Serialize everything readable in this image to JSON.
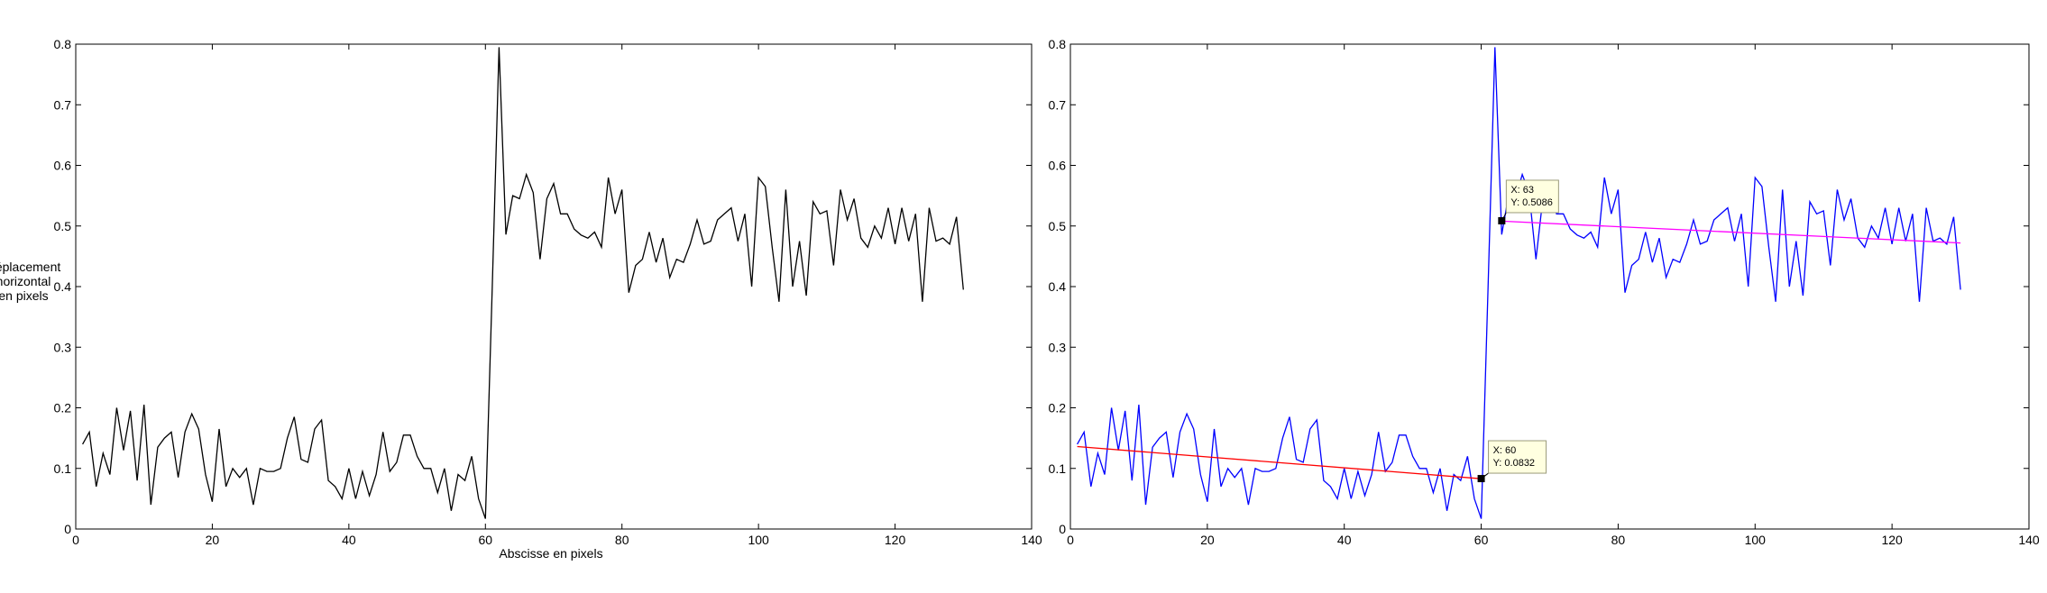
{
  "chart_data": [
    {
      "type": "line",
      "xlabel": "Abscisse en pixels",
      "ylabel_lines": [
        "Déplacement",
        "horizontal",
        "en pixels"
      ],
      "xlim": [
        0,
        140
      ],
      "ylim": [
        0,
        0.8
      ],
      "xticks": [
        0,
        20,
        40,
        60,
        80,
        100,
        120,
        140
      ],
      "yticks": [
        0,
        0.1,
        0.2,
        0.3,
        0.4,
        0.5,
        0.6,
        0.7,
        0.8
      ],
      "xtick_labels": [
        "0",
        "20",
        "40",
        "60",
        "80",
        "100",
        "120",
        "140"
      ],
      "ytick_labels": [
        "0",
        "0.1",
        "0.2",
        "0.3",
        "0.4",
        "0.5",
        "0.6",
        "0.7",
        "0.8"
      ],
      "grid": false,
      "series": [
        {
          "color": "#000000",
          "x": [
            1,
            2,
            3,
            4,
            5,
            6,
            7,
            8,
            9,
            10,
            11,
            12,
            13,
            14,
            15,
            16,
            17,
            18,
            19,
            20,
            21,
            22,
            23,
            24,
            25,
            26,
            27,
            28,
            29,
            30,
            31,
            32,
            33,
            34,
            35,
            36,
            37,
            38,
            39,
            40,
            41,
            42,
            43,
            44,
            45,
            46,
            47,
            48,
            49,
            50,
            51,
            52,
            53,
            54,
            55,
            56,
            57,
            58,
            59,
            60,
            61,
            62,
            63,
            64,
            65,
            66,
            67,
            68,
            69,
            70,
            71,
            72,
            73,
            74,
            75,
            76,
            77,
            78,
            79,
            80,
            81,
            82,
            83,
            84,
            85,
            86,
            87,
            88,
            89,
            90,
            91,
            92,
            93,
            94,
            95,
            96,
            97,
            98,
            99,
            100,
            101,
            102,
            103,
            104,
            105,
            106,
            107,
            108,
            109,
            110,
            111,
            112,
            113,
            114,
            115,
            116,
            117,
            118,
            119,
            120,
            121,
            122,
            123,
            124,
            125,
            126,
            127,
            128,
            129,
            130
          ],
          "y": [
            0.14,
            0.16,
            0.07,
            0.125,
            0.09,
            0.2,
            0.13,
            0.195,
            0.08,
            0.205,
            0.04,
            0.135,
            0.15,
            0.16,
            0.085,
            0.16,
            0.19,
            0.165,
            0.09,
            0.045,
            0.165,
            0.07,
            0.1,
            0.085,
            0.1,
            0.04,
            0.1,
            0.095,
            0.095,
            0.1,
            0.15,
            0.185,
            0.115,
            0.11,
            0.165,
            0.18,
            0.08,
            0.07,
            0.05,
            0.1,
            0.05,
            0.095,
            0.055,
            0.09,
            0.16,
            0.095,
            0.11,
            0.155,
            0.155,
            0.12,
            0.1,
            0.1,
            0.06,
            0.1,
            0.03,
            0.09,
            0.08,
            0.12,
            0.05,
            0.017,
            0.4,
            0.795,
            0.486,
            0.55,
            0.545,
            0.585,
            0.555,
            0.445,
            0.545,
            0.57,
            0.52,
            0.52,
            0.495,
            0.485,
            0.48,
            0.49,
            0.465,
            0.58,
            0.52,
            0.56,
            0.39,
            0.435,
            0.445,
            0.49,
            0.44,
            0.48,
            0.415,
            0.445,
            0.44,
            0.47,
            0.51,
            0.47,
            0.475,
            0.51,
            0.52,
            0.53,
            0.475,
            0.52,
            0.4,
            0.58,
            0.565,
            0.465,
            0.375,
            0.56,
            0.4,
            0.475,
            0.385,
            0.54,
            0.52,
            0.525,
            0.435,
            0.56,
            0.51,
            0.545,
            0.48,
            0.465,
            0.5,
            0.48,
            0.53,
            0.47,
            0.53,
            0.475,
            0.52,
            0.375,
            0.53,
            0.475,
            0.48,
            0.47,
            0.515,
            0.395
          ]
        }
      ]
    },
    {
      "type": "line",
      "xlim": [
        0,
        140
      ],
      "ylim": [
        0,
        0.8
      ],
      "xticks": [
        0,
        20,
        40,
        60,
        80,
        100,
        120,
        140
      ],
      "yticks": [
        0,
        0.1,
        0.2,
        0.3,
        0.4,
        0.5,
        0.6,
        0.7,
        0.8
      ],
      "xtick_labels": [
        "0",
        "20",
        "40",
        "60",
        "80",
        "100",
        "120",
        "140"
      ],
      "ytick_labels": [
        "0",
        "0.1",
        "0.2",
        "0.3",
        "0.4",
        "0.5",
        "0.6",
        "0.7",
        "0.8"
      ],
      "grid": false,
      "series": [
        {
          "color": "#0000ff",
          "x": [
            1,
            2,
            3,
            4,
            5,
            6,
            7,
            8,
            9,
            10,
            11,
            12,
            13,
            14,
            15,
            16,
            17,
            18,
            19,
            20,
            21,
            22,
            23,
            24,
            25,
            26,
            27,
            28,
            29,
            30,
            31,
            32,
            33,
            34,
            35,
            36,
            37,
            38,
            39,
            40,
            41,
            42,
            43,
            44,
            45,
            46,
            47,
            48,
            49,
            50,
            51,
            52,
            53,
            54,
            55,
            56,
            57,
            58,
            59,
            60,
            61,
            62,
            63,
            64,
            65,
            66,
            67,
            68,
            69,
            70,
            71,
            72,
            73,
            74,
            75,
            76,
            77,
            78,
            79,
            80,
            81,
            82,
            83,
            84,
            85,
            86,
            87,
            88,
            89,
            90,
            91,
            92,
            93,
            94,
            95,
            96,
            97,
            98,
            99,
            100,
            101,
            102,
            103,
            104,
            105,
            106,
            107,
            108,
            109,
            110,
            111,
            112,
            113,
            114,
            115,
            116,
            117,
            118,
            119,
            120,
            121,
            122,
            123,
            124,
            125,
            126,
            127,
            128,
            129,
            130
          ],
          "y": [
            0.14,
            0.16,
            0.07,
            0.125,
            0.09,
            0.2,
            0.13,
            0.195,
            0.08,
            0.205,
            0.04,
            0.135,
            0.15,
            0.16,
            0.085,
            0.16,
            0.19,
            0.165,
            0.09,
            0.045,
            0.165,
            0.07,
            0.1,
            0.085,
            0.1,
            0.04,
            0.1,
            0.095,
            0.095,
            0.1,
            0.15,
            0.185,
            0.115,
            0.11,
            0.165,
            0.18,
            0.08,
            0.07,
            0.05,
            0.1,
            0.05,
            0.095,
            0.055,
            0.09,
            0.16,
            0.095,
            0.11,
            0.155,
            0.155,
            0.12,
            0.1,
            0.1,
            0.06,
            0.1,
            0.03,
            0.09,
            0.08,
            0.12,
            0.05,
            0.017,
            0.4,
            0.795,
            0.486,
            0.55,
            0.545,
            0.585,
            0.555,
            0.445,
            0.545,
            0.57,
            0.52,
            0.52,
            0.495,
            0.485,
            0.48,
            0.49,
            0.465,
            0.58,
            0.52,
            0.56,
            0.39,
            0.435,
            0.445,
            0.49,
            0.44,
            0.48,
            0.415,
            0.445,
            0.44,
            0.47,
            0.51,
            0.47,
            0.475,
            0.51,
            0.52,
            0.53,
            0.475,
            0.52,
            0.4,
            0.58,
            0.565,
            0.465,
            0.375,
            0.56,
            0.4,
            0.475,
            0.385,
            0.54,
            0.52,
            0.525,
            0.435,
            0.56,
            0.51,
            0.545,
            0.48,
            0.465,
            0.5,
            0.48,
            0.53,
            0.47,
            0.53,
            0.475,
            0.52,
            0.375,
            0.53,
            0.475,
            0.48,
            0.47,
            0.515,
            0.395
          ]
        },
        {
          "color": "#ff0000",
          "x": [
            1,
            60
          ],
          "y": [
            0.136,
            0.083
          ]
        },
        {
          "color": "#ff00ff",
          "x": [
            63,
            130
          ],
          "y": [
            0.508,
            0.472
          ]
        }
      ],
      "datatips": [
        {
          "x": 63,
          "y": 0.5086,
          "lines": [
            "X: 63",
            "Y: 0.5086"
          ]
        },
        {
          "x": 60,
          "y": 0.0832,
          "lines": [
            "X: 60",
            "Y: 0.0832"
          ]
        }
      ]
    }
  ]
}
